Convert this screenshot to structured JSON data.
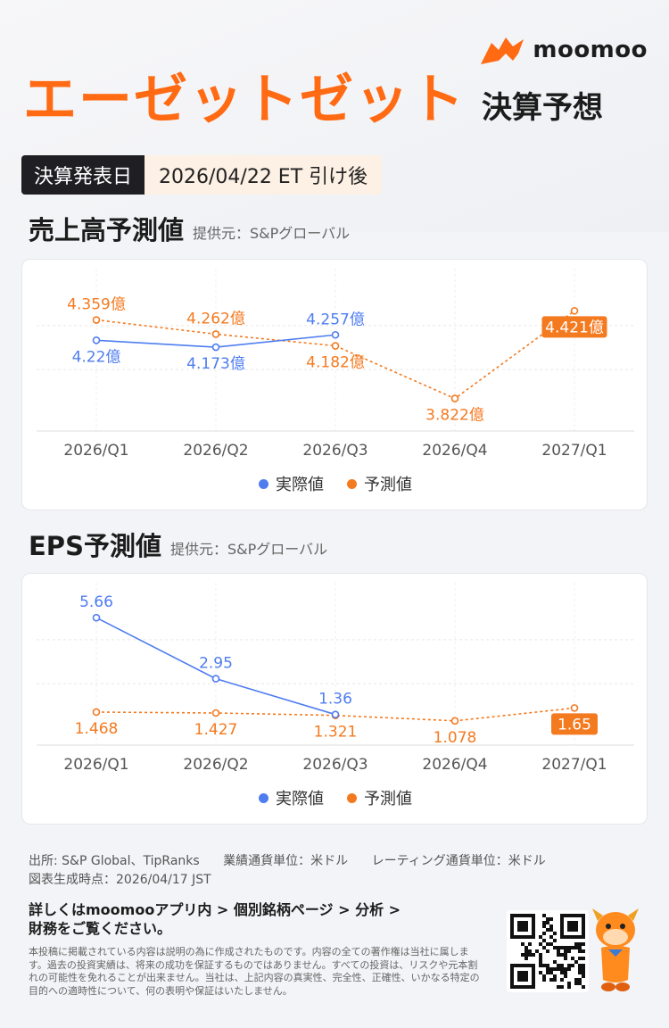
{
  "brand": {
    "name": "moomoo"
  },
  "header": {
    "company": "エーゼットゼット",
    "subtitle": "決算予想",
    "date_label": "決算発表日",
    "date_value": "2026/04/22 ET 引け後"
  },
  "colors": {
    "actual": "#4f7df0",
    "forecast": "#f47a20",
    "brand": "#ff6a13"
  },
  "revenue_section": {
    "title": "売上高予測値",
    "source": "提供元：S&Pグローバル"
  },
  "eps_section": {
    "title": "EPS予測値",
    "source": "提供元：S&Pグローバル"
  },
  "legend": {
    "actual": "実際値",
    "forecast": "予測値"
  },
  "chart_data": [
    {
      "type": "line",
      "categories": [
        "2026/Q1",
        "2026/Q2",
        "2026/Q3",
        "2026/Q4",
        "2027/Q1"
      ],
      "series": [
        {
          "name": "実際値",
          "values": [
            4.22,
            4.173,
            4.257,
            null,
            null
          ],
          "labels": [
            "4.22億",
            "4.173億",
            "4.257億",
            "",
            ""
          ]
        },
        {
          "name": "予測値",
          "values": [
            4.359,
            4.262,
            4.182,
            3.822,
            4.421
          ],
          "labels": [
            "4.359億",
            "4.262億",
            "4.182億",
            "3.822億",
            "4.421億"
          ]
        }
      ],
      "ylim": [
        3.6,
        4.6
      ],
      "grid": true,
      "legend": "bottom-center"
    },
    {
      "type": "line",
      "categories": [
        "2026/Q1",
        "2026/Q2",
        "2026/Q3",
        "2026/Q4",
        "2027/Q1"
      ],
      "series": [
        {
          "name": "実際値",
          "values": [
            5.66,
            2.95,
            1.36,
            null,
            null
          ],
          "labels": [
            "5.66",
            "2.95",
            "1.36",
            "",
            ""
          ]
        },
        {
          "name": "予測値",
          "values": [
            1.468,
            1.427,
            1.321,
            1.078,
            1.65
          ],
          "labels": [
            "1.468",
            "1.427",
            "1.321",
            "1.078",
            "1.65"
          ]
        }
      ],
      "ylim": [
        0,
        6.5
      ],
      "grid": true,
      "legend": "bottom-center"
    }
  ],
  "footer": {
    "source": "出所: S&P Global、TipRanks",
    "unit_results": "業績通貨単位：米ドル",
    "unit_rating": "レーティング通貨単位：米ドル",
    "generated": "図表生成時点：2026/04/17 JST",
    "cta_line1": "詳しくはmoomooアプリ内 > 個別銘柄ページ > 分析 >",
    "cta_line2": "財務をご覧ください。",
    "disclaimer": "本投稿に掲載されている内容は説明の為に作成されたものです。内容の全ての著作権は当社に属します。過去の投資実績は、将来の成功を保証するものではありません。すべての投資は、リスクや元本割れの可能性を免れることが出来ません。当社は、上記内容の真実性、完全性、正確性、いかなる特定の目的への適時性について、何の表明や保証はいたしません。"
  }
}
